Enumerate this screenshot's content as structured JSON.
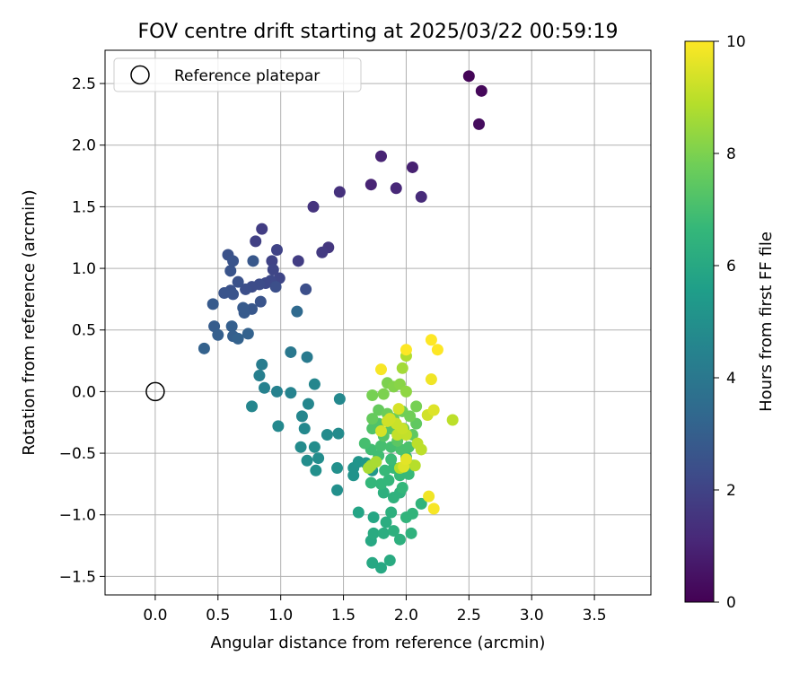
{
  "chart_data": {
    "type": "scatter",
    "title": "FOV centre drift starting at 2025/03/22 00:59:19",
    "xlabel": "Angular distance from reference (arcmin)",
    "ylabel": "Rotation from reference (arcmin)",
    "xlim": [
      -0.4,
      3.95
    ],
    "ylim": [
      -1.65,
      2.77
    ],
    "xticks": [
      "0.0",
      "0.5",
      "1.0",
      "1.5",
      "2.0",
      "2.5",
      "3.0",
      "3.5"
    ],
    "yticks": [
      "−1.5",
      "−1.0",
      "−0.5",
      "0.0",
      "0.5",
      "1.0",
      "1.5",
      "2.0",
      "2.5"
    ],
    "grid": true,
    "legend": {
      "position": "top-left",
      "entries": [
        "Reference platepar"
      ]
    },
    "reference": {
      "x": 0.0,
      "y": 0.0
    },
    "colorbar": {
      "label": "Hours from first FF file",
      "range": [
        0,
        10
      ],
      "ticks": [
        "0",
        "2",
        "4",
        "6",
        "8",
        "10"
      ],
      "colormap": "viridis",
      "stops": [
        "#440154",
        "#482878",
        "#3e4a89",
        "#31688e",
        "#26828e",
        "#1f9e89",
        "#35b779",
        "#6ece58",
        "#b5de2b",
        "#fde725"
      ]
    },
    "points": [
      [
        2.5,
        2.56,
        0.1
      ],
      [
        2.6,
        2.44,
        0.2
      ],
      [
        2.58,
        2.17,
        0.3
      ],
      [
        2.05,
        1.82,
        0.9
      ],
      [
        1.8,
        1.91,
        1.0
      ],
      [
        1.72,
        1.68,
        1.0
      ],
      [
        1.92,
        1.65,
        1.1
      ],
      [
        2.12,
        1.58,
        1.2
      ],
      [
        1.47,
        1.62,
        1.4
      ],
      [
        1.26,
        1.5,
        1.5
      ],
      [
        1.38,
        1.17,
        1.6
      ],
      [
        1.33,
        1.13,
        1.7
      ],
      [
        1.14,
        1.06,
        1.8
      ],
      [
        0.85,
        1.32,
        1.8
      ],
      [
        0.8,
        1.22,
        1.9
      ],
      [
        0.97,
        1.15,
        2.0
      ],
      [
        0.93,
        1.06,
        2.0
      ],
      [
        0.94,
        0.99,
        2.1
      ],
      [
        0.99,
        0.92,
        2.1
      ],
      [
        0.92,
        0.9,
        2.2
      ],
      [
        0.88,
        0.88,
        2.2
      ],
      [
        0.83,
        0.87,
        2.3
      ],
      [
        0.77,
        0.85,
        2.3
      ],
      [
        0.96,
        0.85,
        2.4
      ],
      [
        1.2,
        0.83,
        2.4
      ],
      [
        0.72,
        0.83,
        2.4
      ],
      [
        0.66,
        0.89,
        2.5
      ],
      [
        0.6,
        0.82,
        2.5
      ],
      [
        0.55,
        0.8,
        2.6
      ],
      [
        0.62,
        0.79,
        2.6
      ],
      [
        0.58,
        1.11,
        2.5
      ],
      [
        0.62,
        1.06,
        2.6
      ],
      [
        0.6,
        0.98,
        2.6
      ],
      [
        0.78,
        1.06,
        2.7
      ],
      [
        0.84,
        0.73,
        2.6
      ],
      [
        0.77,
        0.67,
        2.7
      ],
      [
        0.71,
        0.64,
        2.8
      ],
      [
        0.7,
        0.68,
        2.8
      ],
      [
        0.46,
        0.71,
        2.8
      ],
      [
        0.47,
        0.53,
        2.9
      ],
      [
        0.61,
        0.53,
        3.0
      ],
      [
        0.5,
        0.46,
        3.0
      ],
      [
        0.62,
        0.45,
        3.0
      ],
      [
        0.66,
        0.43,
        3.1
      ],
      [
        0.74,
        0.47,
        3.1
      ],
      [
        0.39,
        0.35,
        3.1
      ],
      [
        1.13,
        0.65,
        3.4
      ],
      [
        1.08,
        0.32,
        4.0
      ],
      [
        1.21,
        0.28,
        4.1
      ],
      [
        0.85,
        0.22,
        4.2
      ],
      [
        0.83,
        0.13,
        4.3
      ],
      [
        0.87,
        0.03,
        4.4
      ],
      [
        0.97,
        0.0,
        4.4
      ],
      [
        1.08,
        -0.01,
        4.5
      ],
      [
        1.22,
        -0.1,
        4.6
      ],
      [
        1.17,
        -0.2,
        4.6
      ],
      [
        1.27,
        0.06,
        4.6
      ],
      [
        1.47,
        -0.06,
        4.7
      ],
      [
        0.77,
        -0.12,
        4.6
      ],
      [
        0.98,
        -0.28,
        4.7
      ],
      [
        1.19,
        -0.3,
        4.7
      ],
      [
        1.37,
        -0.35,
        4.8
      ],
      [
        1.46,
        -0.34,
        4.8
      ],
      [
        1.16,
        -0.45,
        4.8
      ],
      [
        1.27,
        -0.45,
        4.9
      ],
      [
        1.21,
        -0.56,
        4.9
      ],
      [
        1.3,
        -0.54,
        4.9
      ],
      [
        1.28,
        -0.64,
        5.0
      ],
      [
        1.45,
        -0.62,
        5.0
      ],
      [
        1.45,
        -0.8,
        5.0
      ],
      [
        1.58,
        -0.62,
        5.1
      ],
      [
        1.58,
        -0.68,
        5.1
      ],
      [
        1.62,
        -0.57,
        5.2
      ],
      [
        1.68,
        -0.58,
        5.3
      ],
      [
        1.73,
        -0.64,
        5.3
      ],
      [
        1.62,
        -0.98,
        5.8
      ],
      [
        1.74,
        -1.02,
        5.9
      ],
      [
        1.72,
        -1.21,
        6.0
      ],
      [
        1.73,
        -1.39,
        6.0
      ],
      [
        1.8,
        -1.43,
        6.0
      ],
      [
        1.87,
        -1.37,
        6.1
      ],
      [
        1.74,
        -1.15,
        6.1
      ],
      [
        1.82,
        -1.15,
        6.2
      ],
      [
        1.84,
        -1.06,
        6.2
      ],
      [
        1.9,
        -1.13,
        6.3
      ],
      [
        1.95,
        -1.2,
        6.3
      ],
      [
        2.04,
        -1.15,
        6.4
      ],
      [
        1.88,
        -0.98,
        6.3
      ],
      [
        1.82,
        -0.82,
        6.3
      ],
      [
        1.9,
        -0.86,
        6.4
      ],
      [
        1.95,
        -0.82,
        6.4
      ],
      [
        2.0,
        -1.02,
        6.5
      ],
      [
        2.05,
        -0.99,
        6.5
      ],
      [
        2.12,
        -0.91,
        6.5
      ],
      [
        1.72,
        -0.74,
        6.6
      ],
      [
        1.8,
        -0.75,
        6.6
      ],
      [
        1.86,
        -0.72,
        6.6
      ],
      [
        1.97,
        -0.78,
        6.6
      ],
      [
        1.83,
        -0.64,
        6.7
      ],
      [
        1.9,
        -0.62,
        6.7
      ],
      [
        1.95,
        -0.68,
        6.7
      ],
      [
        2.02,
        -0.67,
        6.7
      ],
      [
        2.06,
        -0.6,
        6.8
      ],
      [
        2.0,
        -0.53,
        6.8
      ],
      [
        1.88,
        -0.55,
        6.8
      ],
      [
        1.78,
        -0.52,
        6.9
      ],
      [
        1.72,
        -0.47,
        6.9
      ],
      [
        1.67,
        -0.42,
        7.0
      ],
      [
        1.8,
        -0.44,
        7.0
      ],
      [
        1.88,
        -0.45,
        7.0
      ],
      [
        1.96,
        -0.47,
        7.1
      ],
      [
        2.02,
        -0.45,
        7.1
      ],
      [
        1.73,
        -0.3,
        7.2
      ],
      [
        1.78,
        -0.26,
        7.2
      ],
      [
        1.82,
        -0.36,
        7.3
      ],
      [
        1.88,
        -0.3,
        7.3
      ],
      [
        1.93,
        -0.4,
        7.4
      ],
      [
        1.98,
        -0.3,
        7.4
      ],
      [
        2.05,
        -0.35,
        7.5
      ],
      [
        2.08,
        -0.26,
        7.5
      ],
      [
        1.73,
        -0.22,
        7.6
      ],
      [
        1.78,
        -0.15,
        7.6
      ],
      [
        1.85,
        -0.18,
        7.7
      ],
      [
        1.9,
        -0.22,
        7.7
      ],
      [
        1.97,
        -0.16,
        7.8
      ],
      [
        2.03,
        -0.2,
        7.8
      ],
      [
        2.08,
        -0.12,
        7.9
      ],
      [
        1.73,
        -0.03,
        7.9
      ],
      [
        1.82,
        -0.02,
        8.0
      ],
      [
        1.85,
        0.07,
        8.0
      ],
      [
        1.9,
        0.04,
        8.1
      ],
      [
        1.95,
        0.06,
        8.2
      ],
      [
        2.0,
        0.0,
        8.3
      ],
      [
        1.97,
        0.19,
        8.6
      ],
      [
        2.0,
        0.29,
        8.8
      ],
      [
        1.72,
        -0.6,
        8.6
      ],
      [
        1.7,
        -0.62,
        8.7
      ],
      [
        1.76,
        -0.57,
        8.7
      ],
      [
        1.95,
        -0.62,
        8.9
      ],
      [
        2.07,
        -0.6,
        8.9
      ],
      [
        2.12,
        -0.47,
        9.0
      ],
      [
        2.09,
        -0.42,
        9.0
      ],
      [
        1.93,
        -0.35,
        9.1
      ],
      [
        2.0,
        -0.35,
        9.1
      ],
      [
        1.97,
        -0.3,
        9.2
      ],
      [
        1.92,
        -0.26,
        9.2
      ],
      [
        1.87,
        -0.22,
        9.3
      ],
      [
        1.85,
        -0.24,
        9.3
      ],
      [
        1.8,
        -0.32,
        9.4
      ],
      [
        1.94,
        -0.14,
        9.4
      ],
      [
        2.17,
        -0.19,
        9.3
      ],
      [
        2.22,
        -0.15,
        9.5
      ],
      [
        2.37,
        -0.23,
        9.0
      ],
      [
        1.98,
        -0.61,
        9.5
      ],
      [
        2.0,
        -0.55,
        9.6
      ],
      [
        2.18,
        -0.85,
        9.8
      ],
      [
        2.22,
        -0.95,
        9.9
      ],
      [
        2.2,
        0.1,
        9.8
      ],
      [
        1.8,
        0.18,
        9.9
      ],
      [
        2.0,
        0.34,
        10.0
      ],
      [
        2.2,
        0.42,
        10.0
      ],
      [
        2.25,
        0.34,
        10.0
      ]
    ]
  }
}
